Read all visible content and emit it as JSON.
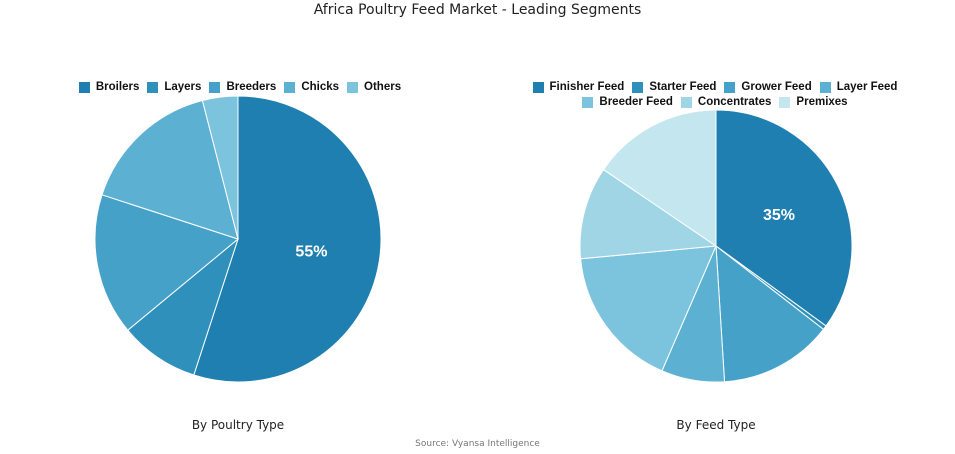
{
  "title": "Africa Poultry Feed Market - Leading Segments",
  "source": "Source: Vyansa Intelligence",
  "chart_data": [
    {
      "type": "pie",
      "subtitle": "By Poultry Type",
      "categories": [
        "Broilers",
        "Layers",
        "Breeders",
        "Chicks",
        "Others"
      ],
      "values": [
        55,
        9,
        16,
        16,
        4
      ],
      "colors": [
        "#1f7fb0",
        "#3090bc",
        "#46a1c8",
        "#5cb1d3",
        "#7cc4de"
      ],
      "data_labels": [
        "55%",
        "",
        "",
        "",
        ""
      ],
      "start_angle_deg": 0,
      "direction": "clockwise"
    },
    {
      "type": "pie",
      "subtitle": "By Feed Type",
      "categories": [
        "Finisher Feed",
        "Starter Feed",
        "Grower Feed",
        "Layer Feed",
        "Breeder Feed",
        "Concentrates",
        "Premixes"
      ],
      "values": [
        35,
        0.5,
        13.5,
        7.5,
        17,
        11,
        15.5
      ],
      "colors": [
        "#1f7fb0",
        "#3090bc",
        "#46a1c8",
        "#5cb1d3",
        "#7cc4de",
        "#a0d5e5",
        "#c4e7ef"
      ],
      "data_labels": [
        "35%",
        "",
        "",
        "",
        "",
        "",
        ""
      ],
      "start_angle_deg": 0,
      "direction": "clockwise"
    }
  ]
}
